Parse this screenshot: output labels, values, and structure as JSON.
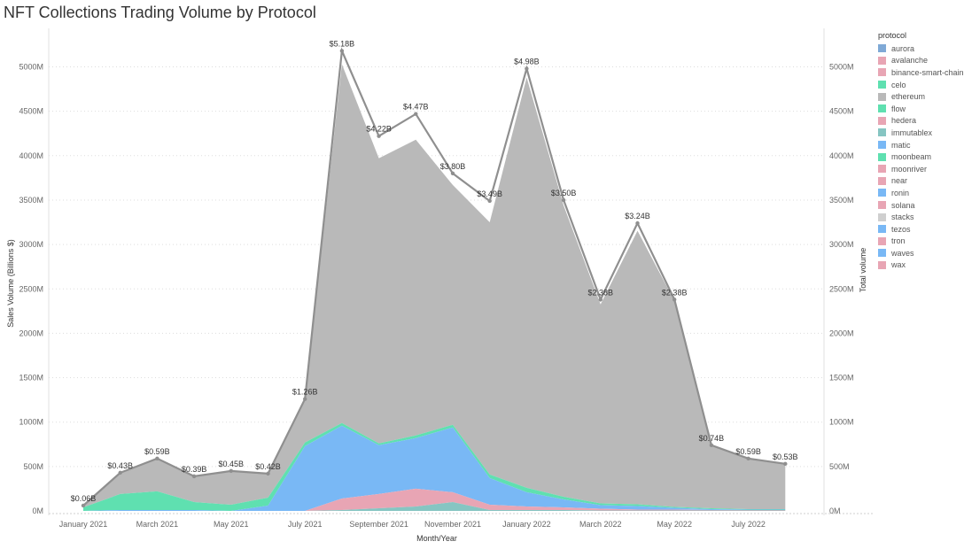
{
  "page": {
    "title": "NFT Collections Trading Volume by Protocol"
  },
  "legend": {
    "title": "protocol",
    "items": [
      {
        "label": "aurora",
        "color": "#7fa9d6"
      },
      {
        "label": "avalanche",
        "color": "#e8a5b4"
      },
      {
        "label": "binance-smart-chain",
        "color": "#e8a5b4"
      },
      {
        "label": "celo",
        "color": "#5fe0b0"
      },
      {
        "label": "ethereum",
        "color": "#b9b9b9"
      },
      {
        "label": "flow",
        "color": "#5fe0b0"
      },
      {
        "label": "hedera",
        "color": "#e8a5b4"
      },
      {
        "label": "immutablex",
        "color": "#86c5c2"
      },
      {
        "label": "matic",
        "color": "#79b8f5"
      },
      {
        "label": "moonbeam",
        "color": "#5fe0b0"
      },
      {
        "label": "moonriver",
        "color": "#e8a5b4"
      },
      {
        "label": "near",
        "color": "#e8a5b4"
      },
      {
        "label": "ronin",
        "color": "#79b8f5"
      },
      {
        "label": "solana",
        "color": "#e8a5b4"
      },
      {
        "label": "stacks",
        "color": "#cfcfcf"
      },
      {
        "label": "tezos",
        "color": "#79b8f5"
      },
      {
        "label": "tron",
        "color": "#e8a5b4"
      },
      {
        "label": "waves",
        "color": "#79b8f5"
      },
      {
        "label": "wax",
        "color": "#e8a5b4"
      }
    ]
  },
  "chart_data": {
    "type": "area",
    "title": "NFT Collections Trading Volume by Protocol",
    "xlabel": "Month/Year",
    "ylabel": "Sales Volume (Billions $)",
    "y2label": "Total volume",
    "x": [
      "2021-01",
      "2021-02",
      "2021-03",
      "2021-04",
      "2021-05",
      "2021-06",
      "2021-07",
      "2021-08",
      "2021-09",
      "2021-10",
      "2021-11",
      "2021-12",
      "2022-01",
      "2022-02",
      "2022-03",
      "2022-04",
      "2022-05",
      "2022-06",
      "2022-07",
      "2022-08"
    ],
    "x_tick_labels": [
      "January 2021",
      "March 2021",
      "May 2021",
      "July 2021",
      "September 2021",
      "November 2021",
      "January 2022",
      "March 2022",
      "May 2022",
      "July 2022"
    ],
    "y_tick_labels": [
      "0M",
      "500M",
      "1000M",
      "1500M",
      "2000M",
      "2500M",
      "3000M",
      "3500M",
      "4000M",
      "4500M",
      "5000M"
    ],
    "ylim": [
      0,
      5500
    ],
    "unit": "M",
    "series": [
      {
        "name": "ethereum",
        "color": "#b9b9b9",
        "values": [
          20,
          230,
          370,
          290,
          380,
          270,
          490,
          4040,
          3210,
          3330,
          2700,
          2840,
          4620,
          3280,
          2240,
          3080,
          2320,
          715,
          575,
          510
        ]
      },
      {
        "name": "flow",
        "color": "#5fe0b0",
        "values": [
          40,
          180,
          210,
          90,
          70,
          90,
          40,
          30,
          20,
          30,
          30,
          40,
          50,
          30,
          20,
          20,
          10,
          10,
          5,
          5
        ]
      },
      {
        "name": "ronin",
        "color": "#79b8f5",
        "values": [
          0,
          10,
          10,
          10,
          0,
          60,
          730,
          820,
          550,
          570,
          730,
          300,
          160,
          90,
          40,
          40,
          20,
          10,
          5,
          5
        ]
      },
      {
        "name": "solana",
        "color": "#e8a5b4",
        "values": [
          0,
          0,
          0,
          0,
          0,
          0,
          0,
          130,
          160,
          200,
          110,
          60,
          40,
          30,
          20,
          10,
          10,
          5,
          5,
          5
        ]
      },
      {
        "name": "immutablex",
        "color": "#86c5c2",
        "values": [
          0,
          0,
          0,
          0,
          0,
          0,
          0,
          10,
          30,
          50,
          100,
          10,
          10,
          10,
          5,
          5,
          5,
          5,
          5,
          5
        ]
      }
    ],
    "totals": [
      60,
      430,
      590,
      390,
      450,
      420,
      1260,
      5180,
      4220,
      4470,
      3800,
      3490,
      4980,
      3500,
      2380,
      3240,
      2380,
      740,
      590,
      530
    ],
    "data_labels": [
      "$0.06B",
      "$0.43B",
      "$0.59B",
      "$0.39B",
      "$0.45B",
      "$0.42B",
      "$1.26B",
      "$5.18B",
      "$4.22B",
      "$4.47B",
      "$3.80B",
      "$3.49B",
      "$4.98B",
      "$3.50B",
      "$2.38B",
      "$3.24B",
      "$2.38B",
      "$0.74B",
      "$0.59B",
      "$0.53B"
    ],
    "grid": true,
    "legend_position": "right"
  }
}
